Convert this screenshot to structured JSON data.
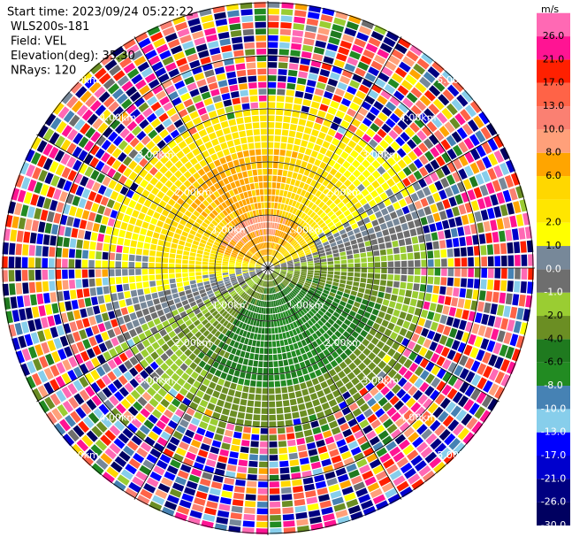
{
  "chart_data": {
    "type": "ppi",
    "header": [
      "Start time: 2023/09/24 05:22:22",
      "WLS200s-181",
      "Field: VEL",
      "Elevation(deg): 35.30",
      "NRays: 120"
    ],
    "range_rings": [
      {
        "value": 1,
        "label": "1.00km"
      },
      {
        "value": 2,
        "label": "2.00km"
      },
      {
        "value": 3,
        "label": "3.00km"
      },
      {
        "value": 4,
        "label": "4.00km"
      },
      {
        "value": 5,
        "label": "5.00km"
      }
    ],
    "colorbar": {
      "title": "m/s",
      "levels": [
        -30,
        -26,
        -21,
        -17,
        -13,
        -10,
        -8,
        -6,
        -4,
        -2,
        -1,
        0,
        1,
        2,
        4,
        6,
        8,
        10,
        13,
        17,
        21,
        26,
        30
      ],
      "colors": [
        "#000060",
        "#000080",
        "#0000cd",
        "#0000ff",
        "#87ceeb",
        "#4682b4",
        "#228b22",
        "#1f7a1f",
        "#6b8e23",
        "#9acd32",
        "#6e6e6e",
        "#778899",
        "#ffff00",
        "#ffe600",
        "#ffd700",
        "#ffa500",
        "#ffa07a",
        "#fa8072",
        "#ff6347",
        "#ff2000",
        "#ff1493",
        "#ff69b4"
      ],
      "ticks": [
        {
          "value": 26,
          "label": "26.0"
        },
        {
          "value": 21,
          "label": "21.0"
        },
        {
          "value": 17,
          "label": "17.0"
        },
        {
          "value": 13,
          "label": "13.0"
        },
        {
          "value": 10,
          "label": "10.0"
        },
        {
          "value": 8,
          "label": "8.0"
        },
        {
          "value": 6,
          "label": "6.0"
        },
        {
          "value": 2,
          "label": "2.0"
        },
        {
          "value": 1,
          "label": "1.0"
        },
        {
          "value": 0,
          "label": "0.0"
        },
        {
          "value": -1,
          "label": "-1.0"
        },
        {
          "value": -2,
          "label": "-2.0"
        },
        {
          "value": -4,
          "label": "-4.0"
        },
        {
          "value": -6,
          "label": "-6.0"
        },
        {
          "value": -8,
          "label": "-8.0"
        },
        {
          "value": -10,
          "label": "-10.0"
        },
        {
          "value": -13,
          "label": "-13.0"
        },
        {
          "value": -17,
          "label": "-17.0"
        },
        {
          "value": -21,
          "label": "-21.0"
        },
        {
          "value": -26,
          "label": "-26.0"
        },
        {
          "value": -30,
          "label": "-30.0"
        }
      ]
    }
  }
}
